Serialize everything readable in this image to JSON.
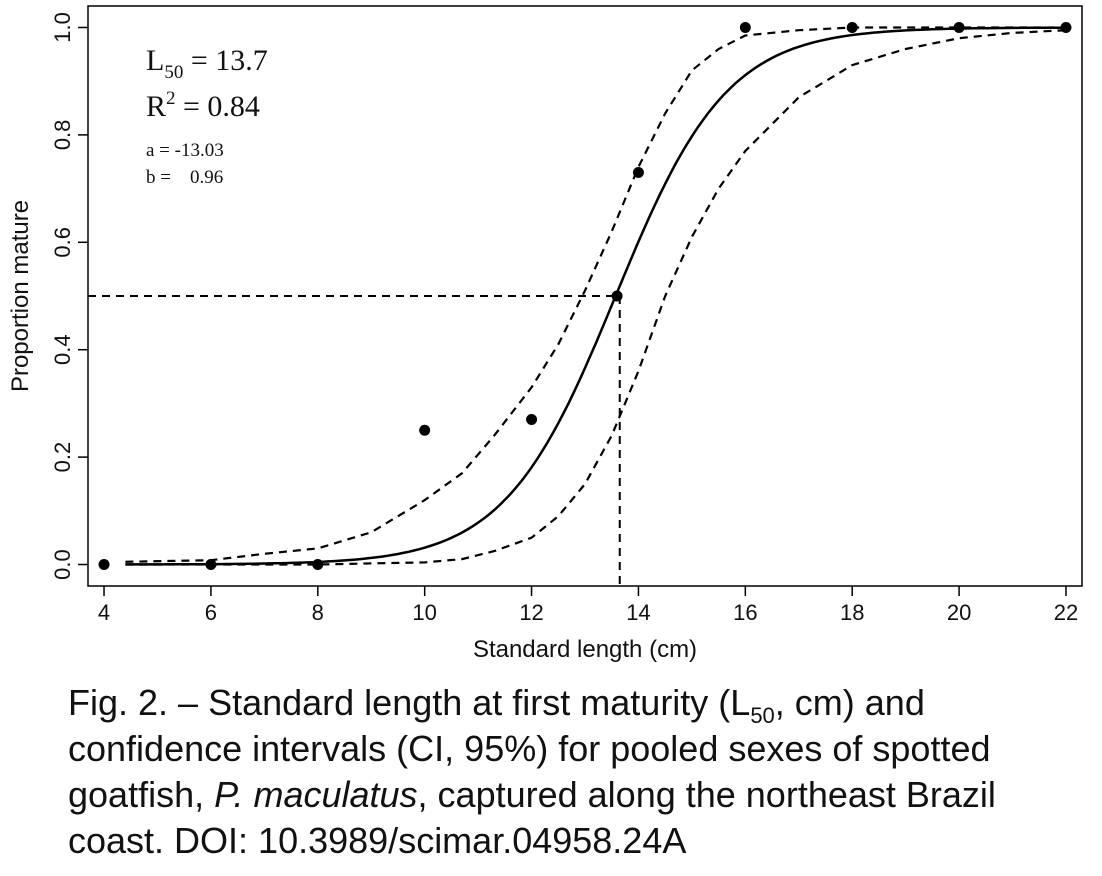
{
  "chart_data": {
    "type": "scatter",
    "xlabel": "Standard length (cm)",
    "ylabel": "Proportion mature",
    "xlim": [
      3.7,
      22.3
    ],
    "ylim": [
      -0.04,
      1.04
    ],
    "x_ticks": [
      "4",
      "6",
      "8",
      "10",
      "12",
      "14",
      "16",
      "18",
      "20",
      "22"
    ],
    "y_ticks": [
      "0.0",
      "0.2",
      "0.4",
      "0.6",
      "0.8",
      "1.0"
    ],
    "grid": false,
    "points": {
      "x": [
        4,
        6,
        8,
        10,
        12,
        13.6,
        14,
        16,
        18,
        20,
        22
      ],
      "y": [
        0.0,
        0.0,
        0.0,
        0.25,
        0.27,
        0.5,
        0.73,
        1.0,
        1.0,
        1.0,
        1.0
      ]
    },
    "fit": {
      "model": "logistic",
      "a": -13.03,
      "b": 0.96,
      "x_range": [
        4.4,
        22
      ]
    },
    "ci_lower": {
      "x": [
        4.4,
        6,
        7,
        8,
        9,
        10,
        10.7,
        11.3,
        12,
        12.5,
        13,
        13.5,
        14,
        14.5,
        15,
        15.5,
        16,
        17,
        18,
        19,
        20,
        21,
        22
      ],
      "y": [
        0.0,
        0.0,
        0.0,
        0.0,
        0.002,
        0.004,
        0.01,
        0.025,
        0.05,
        0.09,
        0.15,
        0.24,
        0.36,
        0.5,
        0.61,
        0.7,
        0.77,
        0.87,
        0.93,
        0.96,
        0.98,
        0.99,
        0.995
      ]
    },
    "ci_upper": {
      "x": [
        4.4,
        6,
        7,
        8,
        9,
        9.5,
        10,
        10.7,
        11.3,
        12,
        12.5,
        13,
        13.5,
        14,
        14.5,
        15,
        15.5,
        16,
        17,
        18,
        19,
        20,
        21,
        22
      ],
      "y": [
        0.005,
        0.008,
        0.02,
        0.03,
        0.06,
        0.09,
        0.12,
        0.17,
        0.24,
        0.33,
        0.41,
        0.51,
        0.62,
        0.74,
        0.84,
        0.92,
        0.96,
        0.985,
        0.995,
        1.0,
        1.0,
        1.0,
        1.0,
        1.0
      ]
    },
    "l50_guide": {
      "x": 13.65,
      "y": 0.5
    },
    "annotations": {
      "l50_label": "L",
      "l50_sub": "50",
      "l50_value": " = 13.7",
      "r2_label": "R",
      "r2_sup": "2",
      "r2_value": " = 0.84",
      "a_text": "a = -13.03",
      "b_text": "b =    0.96"
    },
    "colors": {
      "line": "#000000",
      "points": "#000000"
    }
  },
  "caption": {
    "prefix": "Fig. 2. – Standard length at first maturity (L",
    "sub": "50",
    "middle": ", cm) and confidence intervals (CI, 95%) for pooled sexes of spotted goatfish, ",
    "species": "P. maculatus",
    "suffix": ", captured along the northeast Brazil coast. DOI: 10.3989/scimar.04958.24A"
  }
}
